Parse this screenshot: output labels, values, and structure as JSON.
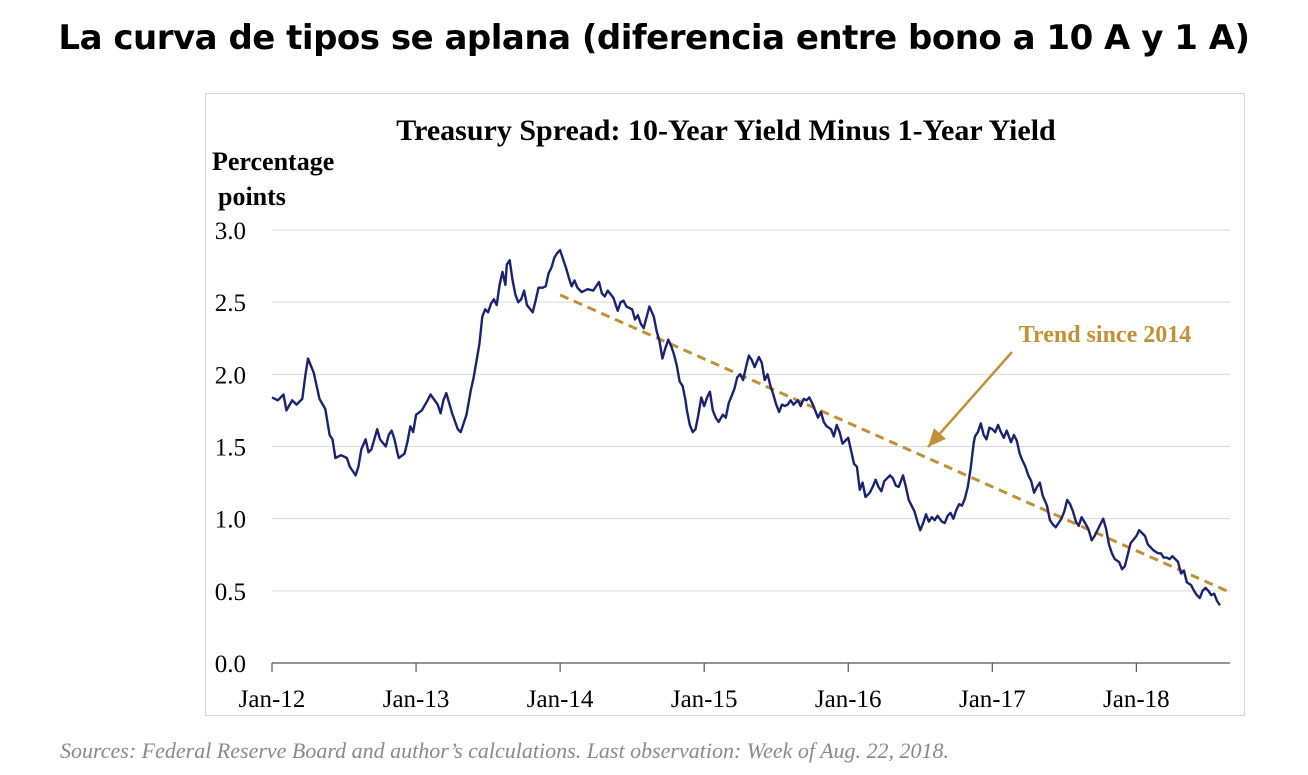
{
  "slide": {
    "title": "La curva de tipos se aplana (diferencia entre bono a 10 A y 1 A)",
    "source": "Sources: Federal Reserve Board and author’s calculations. Last observation: Week of Aug. 22, 2018."
  },
  "chart_data": {
    "type": "line",
    "title": "Treasury Spread: 10-Year Yield Minus 1-Year Yield",
    "ylabel_line1": "Percentage",
    "ylabel_line2": "points",
    "xlim": [
      2012.0,
      2018.65
    ],
    "ylim": [
      0,
      3.0
    ],
    "y_ticks": [
      "0.0",
      "0.5",
      "1.0",
      "1.5",
      "2.0",
      "2.5",
      "3.0"
    ],
    "x_ticks": [
      {
        "label": "Jan-12",
        "value": 2012
      },
      {
        "label": "Jan-13",
        "value": 2013
      },
      {
        "label": "Jan-14",
        "value": 2014
      },
      {
        "label": "Jan-15",
        "value": 2015
      },
      {
        "label": "Jan-16",
        "value": 2016
      },
      {
        "label": "Jan-17",
        "value": 2017
      },
      {
        "label": "Jan-18",
        "value": 2018
      }
    ],
    "grid": "horizontal",
    "series": [
      {
        "color": "#1a2371",
        "points": [
          [
            2012.0,
            1.84
          ],
          [
            2012.04,
            1.82
          ],
          [
            2012.08,
            1.86
          ],
          [
            2012.1,
            1.75
          ],
          [
            2012.14,
            1.82
          ],
          [
            2012.17,
            1.79
          ],
          [
            2012.21,
            1.83
          ],
          [
            2012.23,
            1.98
          ],
          [
            2012.25,
            2.11
          ],
          [
            2012.29,
            2.01
          ],
          [
            2012.33,
            1.83
          ],
          [
            2012.37,
            1.76
          ],
          [
            2012.4,
            1.58
          ],
          [
            2012.42,
            1.55
          ],
          [
            2012.44,
            1.42
          ],
          [
            2012.48,
            1.44
          ],
          [
            2012.52,
            1.42
          ],
          [
            2012.54,
            1.36
          ],
          [
            2012.56,
            1.33
          ],
          [
            2012.58,
            1.3
          ],
          [
            2012.6,
            1.36
          ],
          [
            2012.62,
            1.48
          ],
          [
            2012.65,
            1.55
          ],
          [
            2012.67,
            1.46
          ],
          [
            2012.69,
            1.48
          ],
          [
            2012.71,
            1.55
          ],
          [
            2012.73,
            1.62
          ],
          [
            2012.75,
            1.55
          ],
          [
            2012.79,
            1.5
          ],
          [
            2012.81,
            1.58
          ],
          [
            2012.83,
            1.61
          ],
          [
            2012.85,
            1.55
          ],
          [
            2012.87,
            1.46
          ],
          [
            2012.88,
            1.42
          ],
          [
            2012.92,
            1.45
          ],
          [
            2012.94,
            1.53
          ],
          [
            2012.96,
            1.64
          ],
          [
            2012.98,
            1.6
          ],
          [
            2013.0,
            1.72
          ],
          [
            2013.04,
            1.75
          ],
          [
            2013.08,
            1.82
          ],
          [
            2013.1,
            1.86
          ],
          [
            2013.15,
            1.79
          ],
          [
            2013.17,
            1.73
          ],
          [
            2013.19,
            1.82
          ],
          [
            2013.21,
            1.87
          ],
          [
            2013.25,
            1.73
          ],
          [
            2013.29,
            1.62
          ],
          [
            2013.31,
            1.6
          ],
          [
            2013.35,
            1.72
          ],
          [
            2013.38,
            1.89
          ],
          [
            2013.4,
            1.98
          ],
          [
            2013.44,
            2.21
          ],
          [
            2013.46,
            2.4
          ],
          [
            2013.48,
            2.45
          ],
          [
            2013.5,
            2.43
          ],
          [
            2013.52,
            2.49
          ],
          [
            2013.54,
            2.52
          ],
          [
            2013.56,
            2.48
          ],
          [
            2013.58,
            2.62
          ],
          [
            2013.6,
            2.71
          ],
          [
            2013.62,
            2.62
          ],
          [
            2013.63,
            2.76
          ],
          [
            2013.65,
            2.79
          ],
          [
            2013.67,
            2.65
          ],
          [
            2013.69,
            2.55
          ],
          [
            2013.71,
            2.5
          ],
          [
            2013.73,
            2.52
          ],
          [
            2013.75,
            2.58
          ],
          [
            2013.77,
            2.48
          ],
          [
            2013.81,
            2.43
          ],
          [
            2013.83,
            2.51
          ],
          [
            2013.85,
            2.6
          ],
          [
            2013.88,
            2.6
          ],
          [
            2013.9,
            2.61
          ],
          [
            2013.92,
            2.7
          ],
          [
            2013.94,
            2.74
          ],
          [
            2013.96,
            2.81
          ],
          [
            2013.98,
            2.84
          ],
          [
            2014.0,
            2.86
          ],
          [
            2014.02,
            2.8
          ],
          [
            2014.04,
            2.74
          ],
          [
            2014.06,
            2.67
          ],
          [
            2014.08,
            2.61
          ],
          [
            2014.1,
            2.65
          ],
          [
            2014.12,
            2.6
          ],
          [
            2014.15,
            2.57
          ],
          [
            2014.19,
            2.59
          ],
          [
            2014.23,
            2.58
          ],
          [
            2014.27,
            2.64
          ],
          [
            2014.29,
            2.56
          ],
          [
            2014.31,
            2.54
          ],
          [
            2014.33,
            2.58
          ],
          [
            2014.37,
            2.53
          ],
          [
            2014.4,
            2.44
          ],
          [
            2014.42,
            2.5
          ],
          [
            2014.44,
            2.51
          ],
          [
            2014.46,
            2.47
          ],
          [
            2014.5,
            2.45
          ],
          [
            2014.52,
            2.38
          ],
          [
            2014.54,
            2.41
          ],
          [
            2014.56,
            2.35
          ],
          [
            2014.58,
            2.32
          ],
          [
            2014.62,
            2.47
          ],
          [
            2014.65,
            2.4
          ],
          [
            2014.67,
            2.3
          ],
          [
            2014.69,
            2.23
          ],
          [
            2014.71,
            2.11
          ],
          [
            2014.73,
            2.18
          ],
          [
            2014.75,
            2.24
          ],
          [
            2014.77,
            2.2
          ],
          [
            2014.79,
            2.14
          ],
          [
            2014.81,
            2.06
          ],
          [
            2014.83,
            1.95
          ],
          [
            2014.85,
            1.92
          ],
          [
            2014.87,
            1.82
          ],
          [
            2014.88,
            1.75
          ],
          [
            2014.9,
            1.65
          ],
          [
            2014.92,
            1.6
          ],
          [
            2014.94,
            1.62
          ],
          [
            2014.96,
            1.72
          ],
          [
            2014.98,
            1.84
          ],
          [
            2015.0,
            1.78
          ],
          [
            2015.02,
            1.84
          ],
          [
            2015.04,
            1.88
          ],
          [
            2015.06,
            1.75
          ],
          [
            2015.08,
            1.7
          ],
          [
            2015.1,
            1.67
          ],
          [
            2015.13,
            1.72
          ],
          [
            2015.15,
            1.7
          ],
          [
            2015.17,
            1.8
          ],
          [
            2015.19,
            1.85
          ],
          [
            2015.21,
            1.9
          ],
          [
            2015.23,
            1.98
          ],
          [
            2015.25,
            2.0
          ],
          [
            2015.27,
            1.96
          ],
          [
            2015.29,
            2.05
          ],
          [
            2015.31,
            2.13
          ],
          [
            2015.33,
            2.1
          ],
          [
            2015.35,
            2.05
          ],
          [
            2015.38,
            2.12
          ],
          [
            2015.4,
            2.08
          ],
          [
            2015.42,
            1.96
          ],
          [
            2015.44,
            2.0
          ],
          [
            2015.46,
            1.92
          ],
          [
            2015.48,
            1.86
          ],
          [
            2015.5,
            1.79
          ],
          [
            2015.52,
            1.74
          ],
          [
            2015.54,
            1.79
          ],
          [
            2015.56,
            1.78
          ],
          [
            2015.58,
            1.79
          ],
          [
            2015.6,
            1.82
          ],
          [
            2015.62,
            1.79
          ],
          [
            2015.65,
            1.82
          ],
          [
            2015.67,
            1.78
          ],
          [
            2015.69,
            1.83
          ],
          [
            2015.71,
            1.82
          ],
          [
            2015.73,
            1.84
          ],
          [
            2015.75,
            1.8
          ],
          [
            2015.77,
            1.75
          ],
          [
            2015.79,
            1.7
          ],
          [
            2015.81,
            1.74
          ],
          [
            2015.83,
            1.67
          ],
          [
            2015.85,
            1.64
          ],
          [
            2015.88,
            1.62
          ],
          [
            2015.9,
            1.57
          ],
          [
            2015.92,
            1.65
          ],
          [
            2015.94,
            1.6
          ],
          [
            2015.96,
            1.52
          ],
          [
            2016.0,
            1.56
          ],
          [
            2016.02,
            1.47
          ],
          [
            2016.04,
            1.38
          ],
          [
            2016.06,
            1.36
          ],
          [
            2016.08,
            1.2
          ],
          [
            2016.1,
            1.25
          ],
          [
            2016.12,
            1.15
          ],
          [
            2016.15,
            1.18
          ],
          [
            2016.17,
            1.22
          ],
          [
            2016.19,
            1.27
          ],
          [
            2016.21,
            1.22
          ],
          [
            2016.23,
            1.19
          ],
          [
            2016.25,
            1.26
          ],
          [
            2016.27,
            1.28
          ],
          [
            2016.29,
            1.3
          ],
          [
            2016.31,
            1.28
          ],
          [
            2016.33,
            1.23
          ],
          [
            2016.35,
            1.22
          ],
          [
            2016.38,
            1.3
          ],
          [
            2016.4,
            1.22
          ],
          [
            2016.42,
            1.13
          ],
          [
            2016.44,
            1.09
          ],
          [
            2016.46,
            1.05
          ],
          [
            2016.48,
            0.98
          ],
          [
            2016.5,
            0.92
          ],
          [
            2016.52,
            0.97
          ],
          [
            2016.54,
            1.03
          ],
          [
            2016.56,
            0.98
          ],
          [
            2016.58,
            1.01
          ],
          [
            2016.6,
            0.99
          ],
          [
            2016.62,
            1.02
          ],
          [
            2016.65,
            0.98
          ],
          [
            2016.67,
            0.97
          ],
          [
            2016.69,
            1.02
          ],
          [
            2016.71,
            1.04
          ],
          [
            2016.73,
            1.0
          ],
          [
            2016.75,
            1.06
          ],
          [
            2016.77,
            1.1
          ],
          [
            2016.79,
            1.09
          ],
          [
            2016.81,
            1.14
          ],
          [
            2016.83,
            1.22
          ],
          [
            2016.85,
            1.35
          ],
          [
            2016.87,
            1.52
          ],
          [
            2016.88,
            1.57
          ],
          [
            2016.9,
            1.6
          ],
          [
            2016.92,
            1.66
          ],
          [
            2016.94,
            1.58
          ],
          [
            2016.96,
            1.55
          ],
          [
            2016.98,
            1.63
          ],
          [
            2017.0,
            1.62
          ],
          [
            2017.02,
            1.6
          ],
          [
            2017.04,
            1.65
          ],
          [
            2017.06,
            1.6
          ],
          [
            2017.08,
            1.56
          ],
          [
            2017.1,
            1.61
          ],
          [
            2017.13,
            1.53
          ],
          [
            2017.15,
            1.58
          ],
          [
            2017.17,
            1.54
          ],
          [
            2017.19,
            1.45
          ],
          [
            2017.21,
            1.4
          ],
          [
            2017.23,
            1.36
          ],
          [
            2017.25,
            1.3
          ],
          [
            2017.27,
            1.26
          ],
          [
            2017.29,
            1.18
          ],
          [
            2017.31,
            1.22
          ],
          [
            2017.33,
            1.25
          ],
          [
            2017.35,
            1.16
          ],
          [
            2017.38,
            1.09
          ],
          [
            2017.4,
            0.99
          ],
          [
            2017.42,
            0.96
          ],
          [
            2017.44,
            0.94
          ],
          [
            2017.46,
            0.97
          ],
          [
            2017.48,
            1.0
          ],
          [
            2017.5,
            1.05
          ],
          [
            2017.52,
            1.13
          ],
          [
            2017.54,
            1.1
          ],
          [
            2017.56,
            1.05
          ],
          [
            2017.58,
            0.98
          ],
          [
            2017.6,
            0.95
          ],
          [
            2017.62,
            1.01
          ],
          [
            2017.65,
            0.96
          ],
          [
            2017.67,
            0.92
          ],
          [
            2017.69,
            0.85
          ],
          [
            2017.71,
            0.88
          ],
          [
            2017.73,
            0.92
          ],
          [
            2017.75,
            0.96
          ],
          [
            2017.77,
            1.0
          ],
          [
            2017.79,
            0.93
          ],
          [
            2017.81,
            0.82
          ],
          [
            2017.83,
            0.76
          ],
          [
            2017.85,
            0.72
          ],
          [
            2017.88,
            0.7
          ],
          [
            2017.9,
            0.65
          ],
          [
            2017.92,
            0.67
          ],
          [
            2017.94,
            0.75
          ],
          [
            2017.96,
            0.83
          ],
          [
            2018.0,
            0.88
          ],
          [
            2018.02,
            0.92
          ],
          [
            2018.04,
            0.9
          ],
          [
            2018.06,
            0.88
          ],
          [
            2018.08,
            0.82
          ],
          [
            2018.1,
            0.8
          ],
          [
            2018.12,
            0.78
          ],
          [
            2018.15,
            0.76
          ],
          [
            2018.17,
            0.76
          ],
          [
            2018.19,
            0.73
          ],
          [
            2018.21,
            0.73
          ],
          [
            2018.23,
            0.72
          ],
          [
            2018.25,
            0.74
          ],
          [
            2018.27,
            0.72
          ],
          [
            2018.29,
            0.7
          ],
          [
            2018.31,
            0.62
          ],
          [
            2018.33,
            0.64
          ],
          [
            2018.35,
            0.56
          ],
          [
            2018.38,
            0.54
          ],
          [
            2018.4,
            0.5
          ],
          [
            2018.42,
            0.47
          ],
          [
            2018.44,
            0.45
          ],
          [
            2018.46,
            0.5
          ],
          [
            2018.48,
            0.52
          ],
          [
            2018.5,
            0.5
          ],
          [
            2018.52,
            0.47
          ],
          [
            2018.54,
            0.48
          ],
          [
            2018.56,
            0.43
          ],
          [
            2018.58,
            0.4
          ]
        ]
      }
    ],
    "trend": {
      "label": "Trend since 2014",
      "color": "#c49035",
      "points": [
        [
          2014.0,
          2.55
        ],
        [
          2018.65,
          0.49
        ]
      ]
    }
  }
}
